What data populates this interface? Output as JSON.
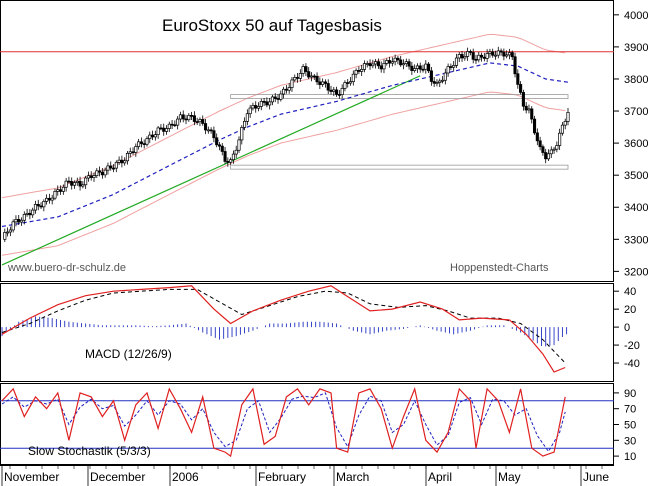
{
  "chart_data": [
    {
      "type": "candlestick",
      "title": "EuroStoxx 50 auf Tagesbasis",
      "watermark_left": "www.buero-dr-schulz.de",
      "watermark_right": "Hoppenstedt-Charts",
      "yticks": [
        3200,
        3300,
        3400,
        3500,
        3600,
        3700,
        3800,
        3900,
        4000
      ],
      "ylim": [
        3170,
        4040
      ],
      "resistance_level": 3885,
      "support_levels": [
        3525,
        3745
      ],
      "close_path": [
        [
          0,
          3300
        ],
        [
          4,
          3350
        ],
        [
          8,
          3370
        ],
        [
          12,
          3400
        ],
        [
          16,
          3420
        ],
        [
          20,
          3450
        ],
        [
          24,
          3480
        ],
        [
          28,
          3470
        ],
        [
          32,
          3500
        ],
        [
          36,
          3510
        ],
        [
          40,
          3530
        ],
        [
          44,
          3550
        ],
        [
          48,
          3590
        ],
        [
          52,
          3610
        ],
        [
          56,
          3640
        ],
        [
          60,
          3650
        ],
        [
          64,
          3680
        ],
        [
          68,
          3680
        ],
        [
          72,
          3660
        ],
        [
          76,
          3620
        ],
        [
          80,
          3550
        ],
        [
          82,
          3540
        ],
        [
          85,
          3610
        ],
        [
          88,
          3700
        ],
        [
          92,
          3720
        ],
        [
          96,
          3730
        ],
        [
          100,
          3750
        ],
        [
          104,
          3790
        ],
        [
          108,
          3830
        ],
        [
          112,
          3800
        ],
        [
          116,
          3780
        ],
        [
          120,
          3750
        ],
        [
          124,
          3790
        ],
        [
          128,
          3830
        ],
        [
          132,
          3850
        ],
        [
          136,
          3840
        ],
        [
          140,
          3860
        ],
        [
          144,
          3850
        ],
        [
          148,
          3830
        ],
        [
          152,
          3840
        ],
        [
          154,
          3800
        ],
        [
          156,
          3780
        ],
        [
          160,
          3830
        ],
        [
          164,
          3870
        ],
        [
          168,
          3880
        ],
        [
          170,
          3860
        ],
        [
          172,
          3870
        ],
        [
          176,
          3880
        ],
        [
          180,
          3880
        ],
        [
          183,
          3870
        ],
        [
          185,
          3780
        ],
        [
          187,
          3720
        ],
        [
          189,
          3700
        ],
        [
          191,
          3640
        ],
        [
          193,
          3580
        ],
        [
          195,
          3560
        ],
        [
          197,
          3570
        ],
        [
          199,
          3600
        ],
        [
          201,
          3650
        ],
        [
          203,
          3700
        ]
      ],
      "moving_average": [
        [
          0,
          3340
        ],
        [
          20,
          3370
        ],
        [
          40,
          3440
        ],
        [
          60,
          3530
        ],
        [
          78,
          3610
        ],
        [
          88,
          3650
        ],
        [
          100,
          3690
        ],
        [
          120,
          3730
        ],
        [
          140,
          3780
        ],
        [
          160,
          3820
        ],
        [
          175,
          3850
        ],
        [
          185,
          3840
        ],
        [
          195,
          3800
        ],
        [
          203,
          3790
        ]
      ],
      "trendline": [
        [
          0,
          3220
        ],
        [
          150,
          3810
        ]
      ],
      "x_labels": [
        "November",
        "December",
        "2006",
        "February",
        "March",
        "April",
        "May",
        "June"
      ]
    },
    {
      "type": "line",
      "name": "macd",
      "label": "MACD (12/26/9)",
      "yticks": [
        40,
        20,
        0,
        -20,
        -40
      ],
      "ylim": [
        -60,
        48
      ],
      "macd": [
        [
          0,
          -8
        ],
        [
          10,
          10
        ],
        [
          20,
          25
        ],
        [
          30,
          35
        ],
        [
          40,
          40
        ],
        [
          50,
          42
        ],
        [
          60,
          44
        ],
        [
          68,
          46
        ],
        [
          76,
          20
        ],
        [
          82,
          4
        ],
        [
          90,
          18
        ],
        [
          100,
          30
        ],
        [
          110,
          40
        ],
        [
          118,
          46
        ],
        [
          124,
          34
        ],
        [
          132,
          18
        ],
        [
          140,
          20
        ],
        [
          150,
          28
        ],
        [
          158,
          20
        ],
        [
          164,
          8
        ],
        [
          172,
          10
        ],
        [
          182,
          8
        ],
        [
          188,
          -8
        ],
        [
          194,
          -30
        ],
        [
          198,
          -50
        ],
        [
          202,
          -45
        ]
      ],
      "signal": [
        [
          0,
          -6
        ],
        [
          10,
          4
        ],
        [
          20,
          18
        ],
        [
          30,
          30
        ],
        [
          40,
          38
        ],
        [
          50,
          40
        ],
        [
          60,
          42
        ],
        [
          70,
          42
        ],
        [
          78,
          28
        ],
        [
          86,
          14
        ],
        [
          96,
          24
        ],
        [
          106,
          34
        ],
        [
          116,
          40
        ],
        [
          124,
          38
        ],
        [
          132,
          26
        ],
        [
          142,
          22
        ],
        [
          152,
          24
        ],
        [
          160,
          18
        ],
        [
          168,
          10
        ],
        [
          178,
          10
        ],
        [
          186,
          4
        ],
        [
          194,
          -14
        ],
        [
          202,
          -40
        ]
      ],
      "histogram": [
        [
          0,
          -10
        ],
        [
          6,
          6
        ],
        [
          12,
          12
        ],
        [
          18,
          10
        ],
        [
          24,
          6
        ],
        [
          30,
          4
        ],
        [
          36,
          2
        ],
        [
          42,
          2
        ],
        [
          48,
          2
        ],
        [
          54,
          1
        ],
        [
          60,
          2
        ],
        [
          66,
          4
        ],
        [
          72,
          -6
        ],
        [
          78,
          -14
        ],
        [
          84,
          -10
        ],
        [
          90,
          -4
        ],
        [
          96,
          4
        ],
        [
          102,
          4
        ],
        [
          108,
          6
        ],
        [
          114,
          6
        ],
        [
          120,
          4
        ],
        [
          126,
          -4
        ],
        [
          132,
          -8
        ],
        [
          138,
          -4
        ],
        [
          144,
          -2
        ],
        [
          150,
          2
        ],
        [
          156,
          -4
        ],
        [
          162,
          -8
        ],
        [
          168,
          -4
        ],
        [
          174,
          2
        ],
        [
          180,
          2
        ],
        [
          186,
          -6
        ],
        [
          190,
          -14
        ],
        [
          194,
          -22
        ],
        [
          198,
          -20
        ],
        [
          202,
          -8
        ]
      ]
    },
    {
      "type": "line",
      "name": "stochastic",
      "label": "Slow Stochastik (5/3/3)",
      "yticks": [
        90,
        70,
        50,
        30,
        10
      ],
      "ylim": [
        0,
        100
      ],
      "levels": [
        20,
        80
      ],
      "k_line": [
        [
          0,
          80
        ],
        [
          4,
          95
        ],
        [
          8,
          60
        ],
        [
          12,
          85
        ],
        [
          16,
          70
        ],
        [
          20,
          90
        ],
        [
          24,
          30
        ],
        [
          28,
          90
        ],
        [
          32,
          85
        ],
        [
          36,
          60
        ],
        [
          40,
          80
        ],
        [
          44,
          30
        ],
        [
          48,
          75
        ],
        [
          52,
          90
        ],
        [
          56,
          45
        ],
        [
          60,
          95
        ],
        [
          64,
          70
        ],
        [
          68,
          40
        ],
        [
          72,
          85
        ],
        [
          76,
          20
        ],
        [
          80,
          15
        ],
        [
          82,
          10
        ],
        [
          86,
          75
        ],
        [
          90,
          95
        ],
        [
          94,
          25
        ],
        [
          98,
          35
        ],
        [
          102,
          85
        ],
        [
          106,
          95
        ],
        [
          110,
          75
        ],
        [
          114,
          95
        ],
        [
          118,
          90
        ],
        [
          120,
          20
        ],
        [
          124,
          15
        ],
        [
          128,
          90
        ],
        [
          132,
          95
        ],
        [
          136,
          70
        ],
        [
          140,
          20
        ],
        [
          144,
          60
        ],
        [
          148,
          95
        ],
        [
          152,
          30
        ],
        [
          156,
          15
        ],
        [
          160,
          40
        ],
        [
          164,
          95
        ],
        [
          168,
          80
        ],
        [
          170,
          20
        ],
        [
          174,
          95
        ],
        [
          178,
          80
        ],
        [
          182,
          40
        ],
        [
          186,
          95
        ],
        [
          190,
          20
        ],
        [
          194,
          10
        ],
        [
          198,
          15
        ],
        [
          202,
          85
        ]
      ],
      "d_line": [
        [
          0,
          76
        ],
        [
          4,
          85
        ],
        [
          8,
          72
        ],
        [
          12,
          80
        ],
        [
          16,
          76
        ],
        [
          20,
          82
        ],
        [
          24,
          50
        ],
        [
          28,
          72
        ],
        [
          32,
          82
        ],
        [
          36,
          70
        ],
        [
          40,
          74
        ],
        [
          44,
          48
        ],
        [
          48,
          62
        ],
        [
          52,
          80
        ],
        [
          56,
          62
        ],
        [
          60,
          80
        ],
        [
          64,
          76
        ],
        [
          68,
          56
        ],
        [
          72,
          70
        ],
        [
          76,
          40
        ],
        [
          80,
          22
        ],
        [
          84,
          30
        ],
        [
          88,
          70
        ],
        [
          92,
          80
        ],
        [
          96,
          40
        ],
        [
          100,
          58
        ],
        [
          104,
          82
        ],
        [
          108,
          86
        ],
        [
          112,
          84
        ],
        [
          116,
          90
        ],
        [
          120,
          46
        ],
        [
          124,
          22
        ],
        [
          128,
          62
        ],
        [
          132,
          86
        ],
        [
          136,
          80
        ],
        [
          140,
          40
        ],
        [
          144,
          50
        ],
        [
          148,
          80
        ],
        [
          152,
          50
        ],
        [
          156,
          24
        ],
        [
          160,
          36
        ],
        [
          164,
          78
        ],
        [
          168,
          84
        ],
        [
          172,
          50
        ],
        [
          176,
          82
        ],
        [
          180,
          80
        ],
        [
          184,
          62
        ],
        [
          188,
          70
        ],
        [
          192,
          36
        ],
        [
          196,
          16
        ],
        [
          200,
          40
        ],
        [
          202,
          66
        ]
      ]
    }
  ]
}
